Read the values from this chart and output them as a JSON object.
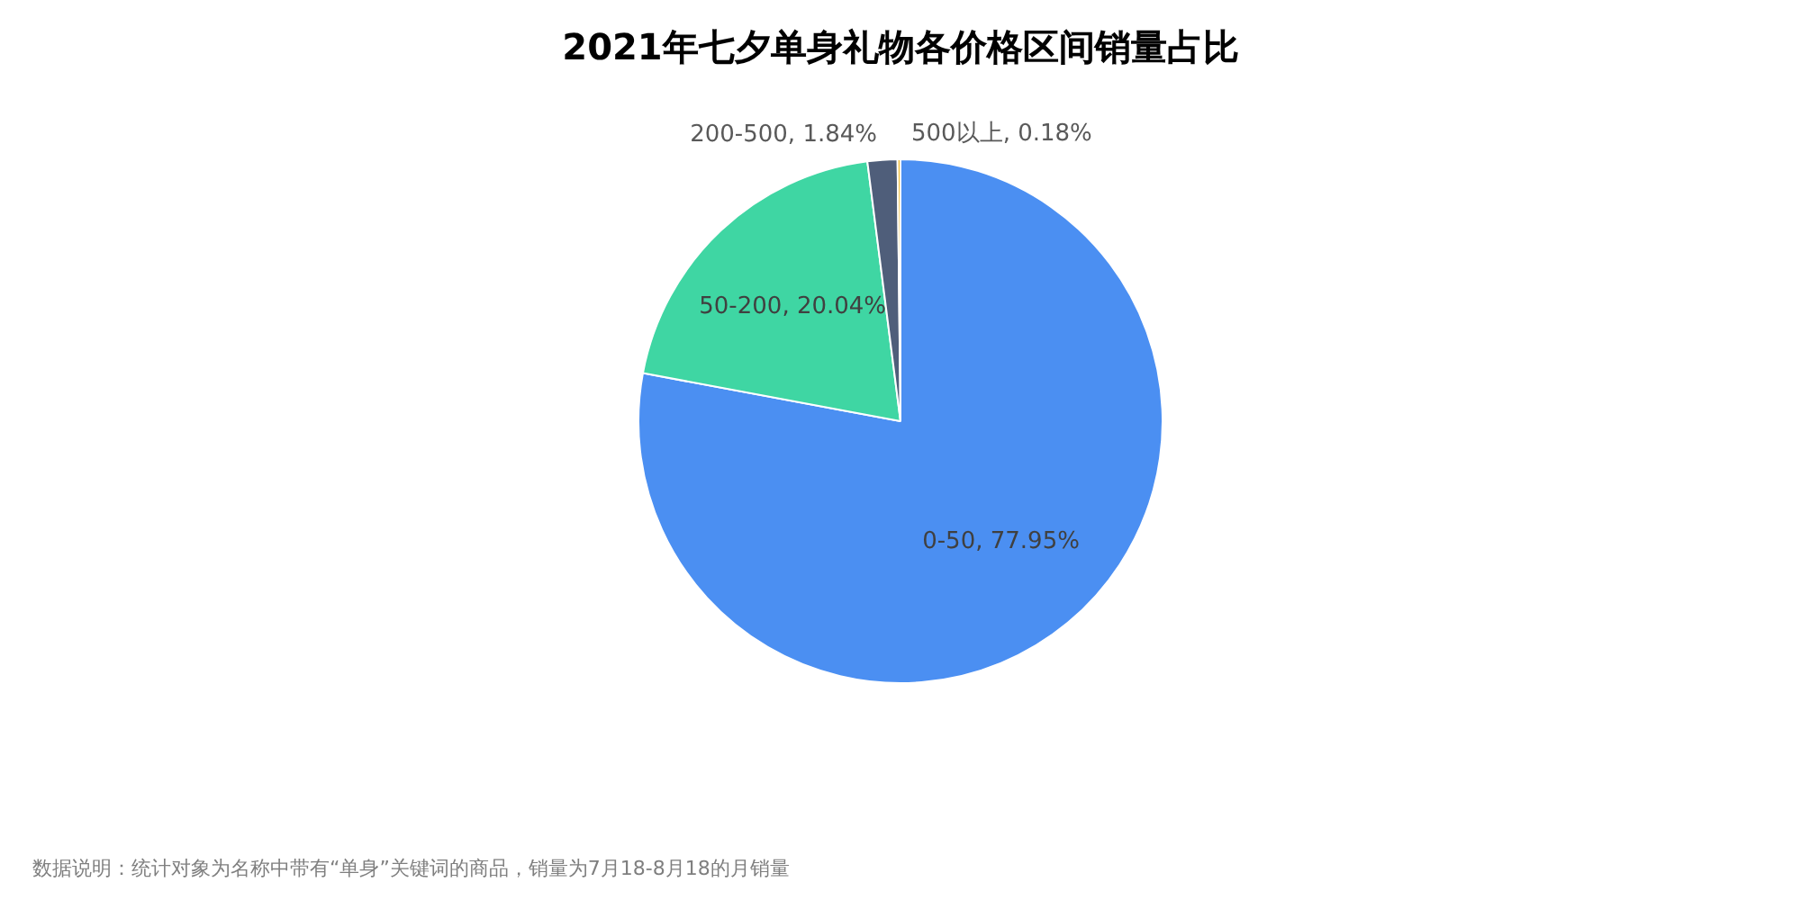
{
  "chart_data": {
    "type": "pie",
    "title": "2021年七夕单身礼物各价格区间销量占比",
    "categories": [
      "0-50",
      "50-200",
      "200-500",
      "500以上"
    ],
    "values": [
      77.95,
      20.04,
      1.84,
      0.18
    ],
    "colors": [
      "#4b8ff2",
      "#3fd6a3",
      "#4f5e7a",
      "#f0b92a"
    ],
    "value_labels": [
      ", 77.95%",
      ", 20.04%",
      ", 1.84%",
      ", 0.18%"
    ],
    "legend": false,
    "annotations": [
      "数据说明：统计对象为名称中带有“单身”关键词的商品，销量为7月18-8月18的月销量"
    ]
  }
}
